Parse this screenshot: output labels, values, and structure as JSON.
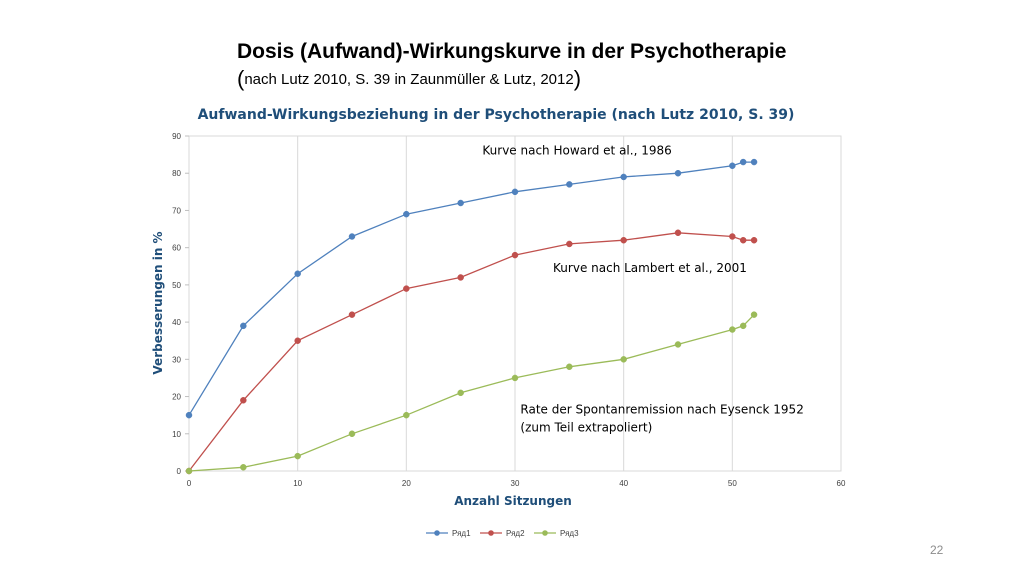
{
  "slide": {
    "title": "Dosis (Aufwand)-Wirkungskurve in der Psychotherapie",
    "subtitle_open": "(",
    "subtitle_text": "nach Lutz 2010, S. 39 in Zaunmüller & Lutz, 2012",
    "subtitle_close": ")",
    "page_number": "22"
  },
  "chart_data": {
    "type": "line",
    "title": "Aufwand-Wirkungsbeziehung in der Psychotherapie (nach Lutz 2010, S. 39)",
    "xlabel": "Anzahl Sitzungen",
    "ylabel": "Verbesserungen in %",
    "xlim": [
      0,
      60
    ],
    "ylim": [
      0,
      90
    ],
    "xticks": [
      0,
      10,
      20,
      30,
      40,
      50,
      60
    ],
    "yticks": [
      0,
      10,
      20,
      30,
      40,
      50,
      60,
      70,
      80,
      90
    ],
    "grid": "vertical",
    "legend_position": "bottom",
    "series": [
      {
        "name": "Ряд1",
        "color": "#4f81bd",
        "x": [
          0,
          5,
          10,
          15,
          20,
          25,
          30,
          35,
          40,
          45,
          50,
          51,
          52
        ],
        "y": [
          15,
          39,
          53,
          63,
          69,
          72,
          75,
          77,
          79,
          80,
          82,
          83,
          83
        ]
      },
      {
        "name": "Ряд2",
        "color": "#c0504d",
        "x": [
          0,
          5,
          10,
          15,
          20,
          25,
          30,
          35,
          40,
          45,
          50,
          51,
          52
        ],
        "y": [
          0,
          19,
          35,
          42,
          49,
          52,
          58,
          61,
          62,
          64,
          63,
          62,
          62
        ]
      },
      {
        "name": "Ряд3",
        "color": "#9bbb59",
        "x": [
          0,
          5,
          10,
          15,
          20,
          25,
          30,
          35,
          40,
          45,
          50,
          51,
          52
        ],
        "y": [
          0,
          1,
          4,
          10,
          15,
          21,
          25,
          28,
          30,
          34,
          38,
          39,
          42
        ]
      }
    ],
    "annotations": [
      {
        "lines": [
          "Kurve nach Howard et al., 1986"
        ],
        "x": 27,
        "y": 85
      },
      {
        "lines": [
          "Kurve nach Lambert et al., 2001"
        ],
        "x": 33.5,
        "y": 53.5
      },
      {
        "lines": [
          "Rate der Spontanremission nach Eysenck 1952",
          "(zum Teil extrapoliert)"
        ],
        "x": 30.5,
        "y": 15.5
      }
    ]
  }
}
